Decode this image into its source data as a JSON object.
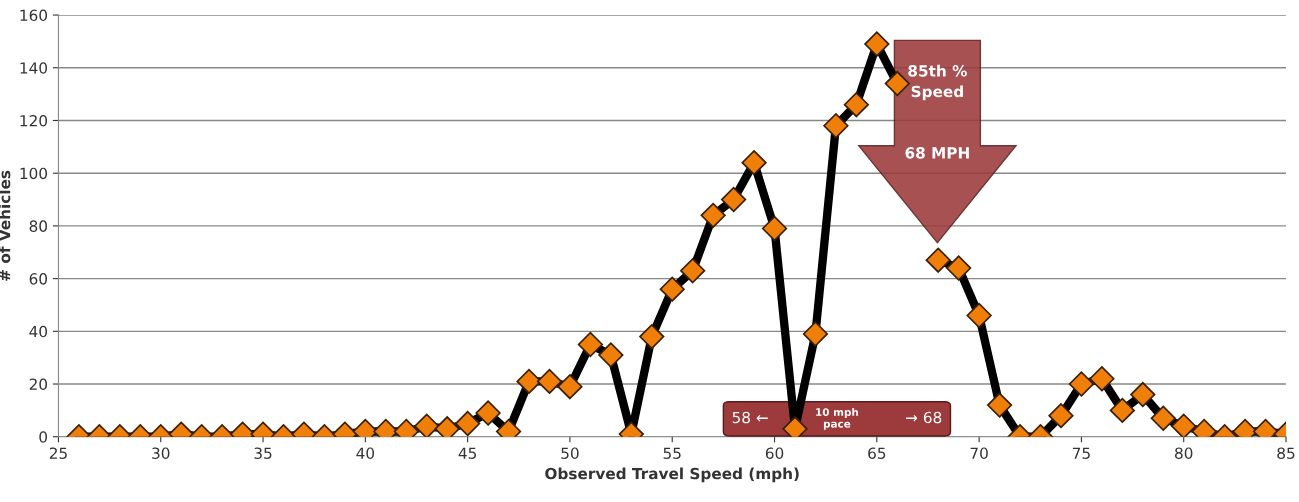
{
  "chart_data": {
    "type": "line",
    "xlabel": "Observed Travel Speed (mph)",
    "ylabel": "# of Vehicles",
    "x": [
      26,
      27,
      28,
      29,
      30,
      31,
      32,
      33,
      34,
      35,
      36,
      37,
      38,
      39,
      40,
      41,
      42,
      43,
      44,
      45,
      46,
      47,
      48,
      49,
      50,
      51,
      52,
      53,
      54,
      55,
      56,
      57,
      58,
      59,
      60,
      61,
      62,
      63,
      64,
      65,
      66,
      67,
      68,
      69,
      70,
      71,
      72,
      73,
      74,
      75,
      76,
      77,
      78,
      79,
      80,
      81,
      82,
      83,
      84,
      85
    ],
    "series": [
      {
        "color": "#f07f09",
        "values": [
          0,
          0,
          0,
          0,
          0,
          1,
          0,
          0,
          1,
          1,
          0,
          1,
          0,
          1,
          2,
          2,
          2,
          4,
          3,
          5,
          9,
          2,
          21,
          21,
          19,
          35,
          31,
          1,
          38,
          56,
          63,
          84,
          90,
          104,
          79,
          3,
          39,
          118,
          126,
          149,
          134,
          null,
          67,
          64,
          46,
          12,
          0,
          0,
          8,
          20,
          22,
          10,
          16,
          7,
          4,
          2,
          0,
          2,
          2,
          1
        ]
      }
    ],
    "marker": "diamond",
    "line_style": "solid",
    "xlim": [
      25,
      85
    ],
    "xticks": [
      25,
      30,
      35,
      40,
      45,
      50,
      55,
      60,
      65,
      70,
      75,
      80,
      85
    ],
    "ylim": [
      0,
      160
    ],
    "yticks": [
      0,
      20,
      40,
      60,
      80,
      100,
      120,
      140,
      160
    ],
    "grid": "y",
    "annotations": [
      "85th %\nSpeed",
      "68 MPH",
      "58 ←",
      "10 mph\npace",
      "→ 68"
    ]
  }
}
